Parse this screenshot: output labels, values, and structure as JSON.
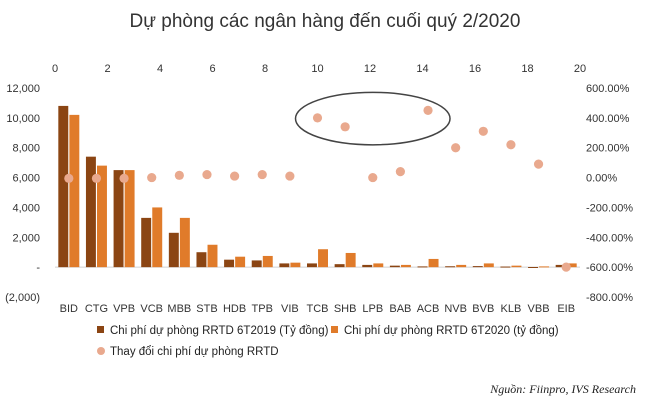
{
  "chart_data": {
    "type": "bar",
    "title": "Dự phòng các ngân hàng đến cuối quý 2/2020",
    "categories": [
      "BID",
      "CTG",
      "VPB",
      "VCB",
      "MBB",
      "STB",
      "HDB",
      "TPB",
      "VIB",
      "TCB",
      "SHB",
      "LPB",
      "BAB",
      "ACB",
      "NVB",
      "BVB",
      "KLB",
      "VBB",
      "EIB"
    ],
    "series": [
      {
        "name": "Chi phí dự phòng RRTD 6T2019 (Tỷ đồng)",
        "type": "bar",
        "axis": "left",
        "color": "#8B4513",
        "values": [
          10800,
          7400,
          6500,
          3300,
          2300,
          1000,
          500,
          450,
          250,
          250,
          200,
          150,
          100,
          50,
          60,
          70,
          40,
          10,
          150
        ]
      },
      {
        "name": "Chi phí dự phòng RRTD 6T2020 (tỷ đồng)",
        "type": "bar",
        "axis": "left",
        "color": "#E07B2A",
        "values": [
          10200,
          6800,
          6500,
          4000,
          3300,
          1500,
          700,
          750,
          300,
          1200,
          950,
          250,
          150,
          550,
          150,
          250,
          100,
          50,
          250
        ]
      },
      {
        "name": "Thay đổi chi phí dự phòng RRTD",
        "type": "scatter",
        "axis": "right",
        "color": "#E9A98E",
        "values": [
          -5,
          -5,
          -5,
          0,
          15,
          20,
          10,
          20,
          10,
          400,
          340,
          0,
          40,
          450,
          200,
          310,
          220,
          90,
          -600
        ]
      }
    ],
    "left_axis": {
      "ticks": [
        "(2,000)",
        "-",
        "2,000",
        "4,000",
        "6,000",
        "8,000",
        "10,000",
        "12,000"
      ],
      "ylim": [
        -2000,
        12000
      ]
    },
    "right_axis": {
      "ticks": [
        "-800.00%",
        "-600.00%",
        "-400.00%",
        "-200.00%",
        "0.00%",
        "200.00%",
        "400.00%",
        "600.00%"
      ],
      "ylim": [
        -800,
        600
      ]
    },
    "top_axis": {
      "ticks": [
        "0",
        "2",
        "4",
        "6",
        "8",
        "10",
        "12",
        "14",
        "16",
        "18",
        "20"
      ],
      "xlim": [
        0,
        20
      ]
    },
    "annotation": {
      "type": "ellipse",
      "around_categories": [
        "TCB",
        "SHB",
        "ACB"
      ]
    },
    "legend_placement": "bottom-left",
    "grid": false
  },
  "source_note": "Nguồn: Fiinpro, IVS Research"
}
